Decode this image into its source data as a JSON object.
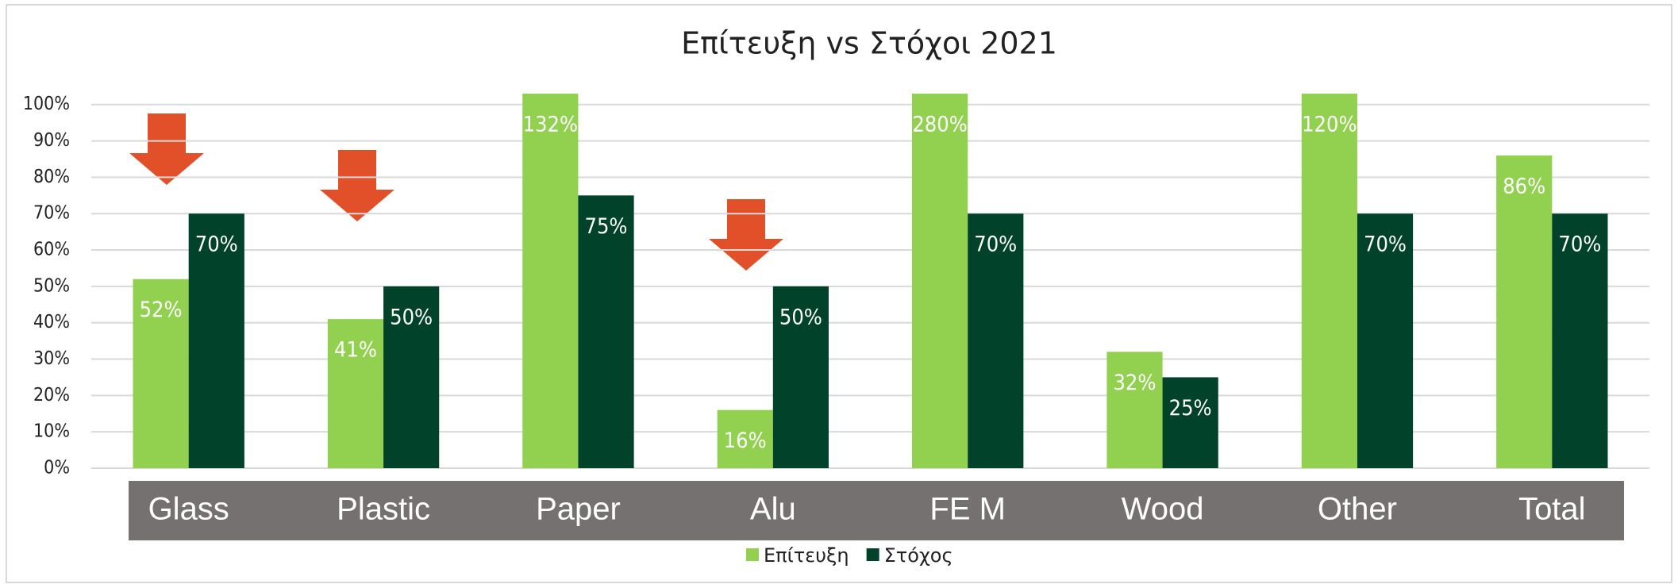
{
  "chart_data": {
    "type": "bar",
    "title": "Επίτευξη vs Στόχοι 2021",
    "categories": [
      "Glass",
      "Plastic",
      "Paper",
      "Alu",
      "FE M",
      "Wood",
      "Other",
      "Total"
    ],
    "series": [
      {
        "name": "Επίτευξη",
        "color": "#92d050",
        "values": [
          52,
          41,
          132,
          16,
          280,
          32,
          120,
          86
        ],
        "value_labels": [
          "52%",
          "41%",
          "132%",
          "16%",
          "280%",
          "32%",
          "120%",
          "86%"
        ]
      },
      {
        "name": "Στόχος",
        "color": "#00432a",
        "values": [
          70,
          50,
          75,
          50,
          70,
          25,
          70,
          70
        ],
        "value_labels": [
          "70%",
          "50%",
          "75%",
          "50%",
          "70%",
          "25%",
          "70%",
          "70%"
        ]
      }
    ],
    "ylim": [
      0,
      103
    ],
    "yticks": [
      {
        "value": 0,
        "label": "0%"
      },
      {
        "value": 10,
        "label": "10%"
      },
      {
        "value": 20,
        "label": "20%"
      },
      {
        "value": 30,
        "label": "30%"
      },
      {
        "value": 40,
        "label": "40%"
      },
      {
        "value": 50,
        "label": "50%"
      },
      {
        "value": 60,
        "label": "60%"
      },
      {
        "value": 70,
        "label": "70%"
      },
      {
        "value": 80,
        "label": "80%"
      },
      {
        "value": 90,
        "label": "90%"
      },
      {
        "value": 100,
        "label": "100%"
      }
    ],
    "grid": true,
    "legend": "bottom"
  }
}
